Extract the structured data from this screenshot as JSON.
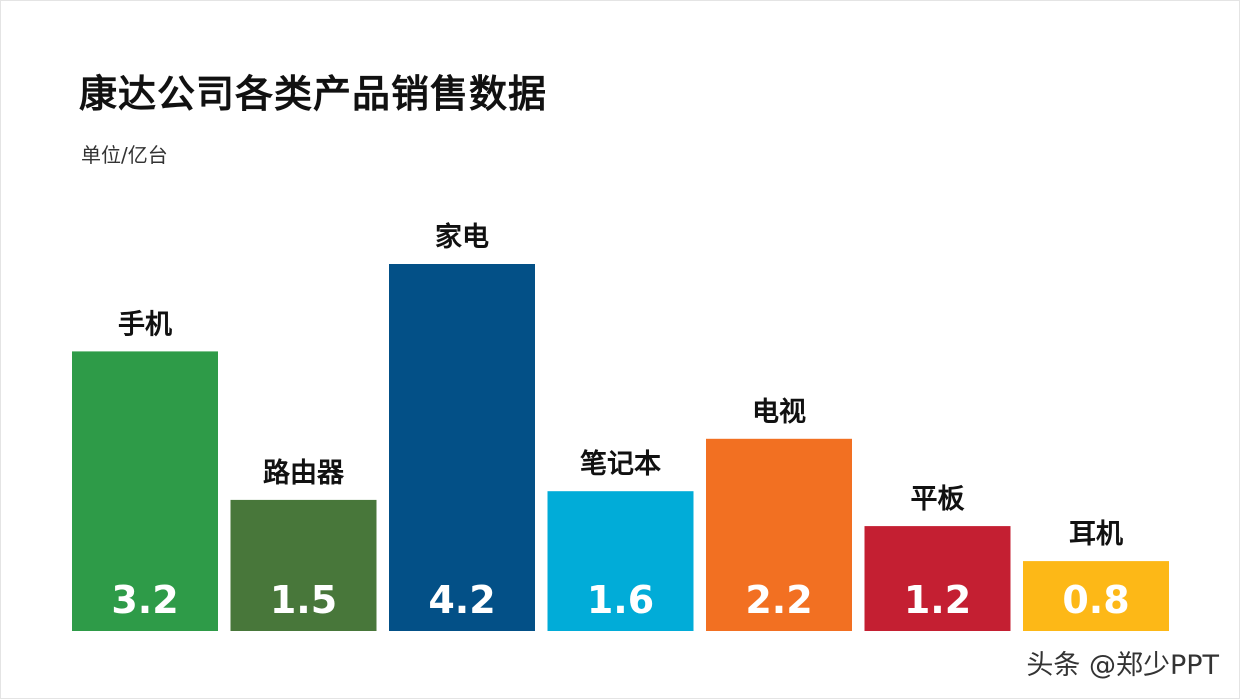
{
  "page": {
    "title": "康达公司各类产品销售数据",
    "subtitle": "单位/亿台",
    "watermark": "头条 @郑少PPT"
  },
  "chart_data": {
    "type": "bar",
    "title": "康达公司各类产品销售数据",
    "subtitle": "单位/亿台",
    "xlabel": "",
    "ylabel": "",
    "ylim": [
      0,
      4.2
    ],
    "grid": false,
    "legend": "none",
    "categories": [
      "手机",
      "路由器",
      "家电",
      "笔记本",
      "电视",
      "平板",
      "耳机"
    ],
    "values": [
      3.2,
      1.5,
      4.2,
      1.6,
      2.2,
      1.2,
      0.8
    ],
    "value_labels": [
      "3.2",
      "1.5",
      "4.2",
      "1.6",
      "2.2",
      "1.2",
      "0.8"
    ],
    "colors": [
      "#2e9b48",
      "#48773a",
      "#035087",
      "#01acd8",
      "#f27022",
      "#c41f32",
      "#fdb817"
    ]
  }
}
